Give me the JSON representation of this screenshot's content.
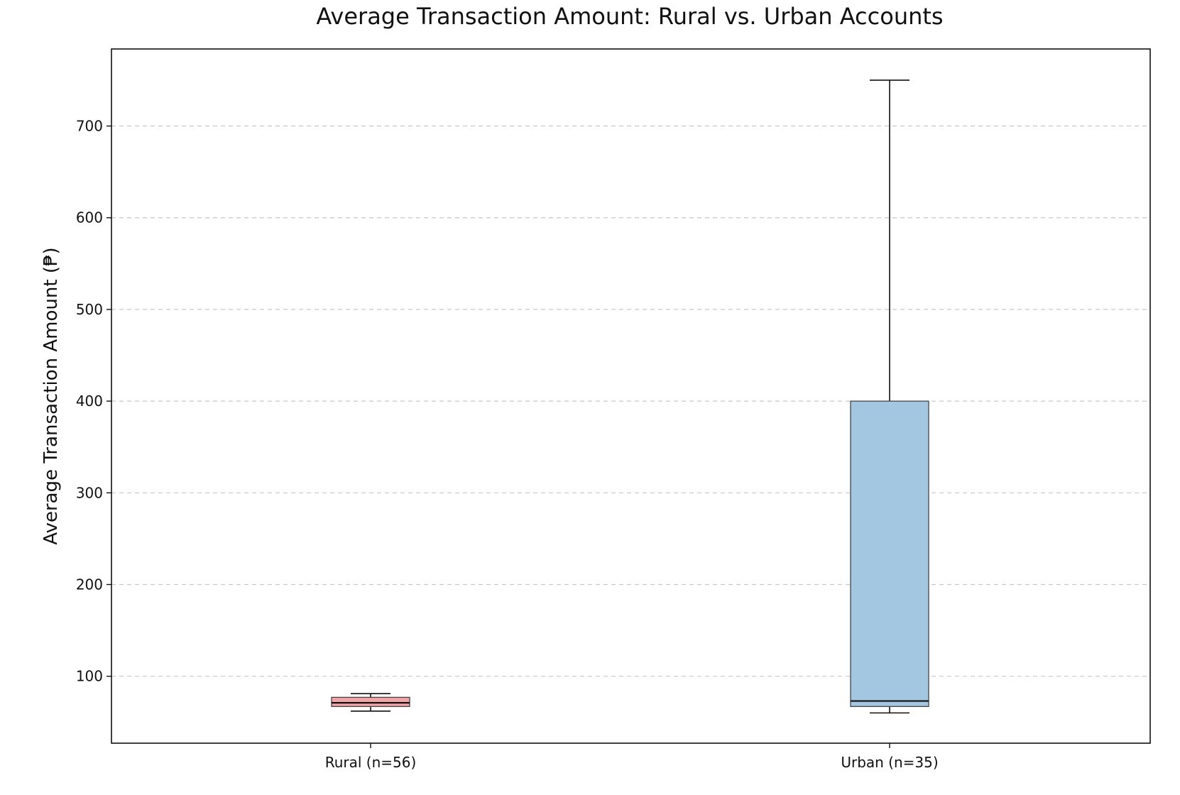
{
  "chart_data": {
    "type": "box",
    "title": "Average Transaction Amount: Rural vs. Urban Accounts",
    "xlabel": "",
    "ylabel": "Average Transaction Amount (₱)",
    "ylim": [
      27,
      784
    ],
    "yticks": [
      100,
      200,
      300,
      400,
      500,
      600,
      700
    ],
    "grid": "y-dashed",
    "categories": [
      "Rural (n=56)",
      "Urban (n=35)"
    ],
    "boxes": [
      {
        "label": "Rural (n=56)",
        "whisker_low": 62,
        "q1": 67,
        "median": 71,
        "q3": 77,
        "whisker_high": 81,
        "color": "#f2a5a8"
      },
      {
        "label": "Urban (n=35)",
        "whisker_low": 60,
        "q1": 67,
        "median": 73,
        "q3": 400,
        "whisker_high": 750,
        "color": "#a3c6e1"
      }
    ]
  }
}
